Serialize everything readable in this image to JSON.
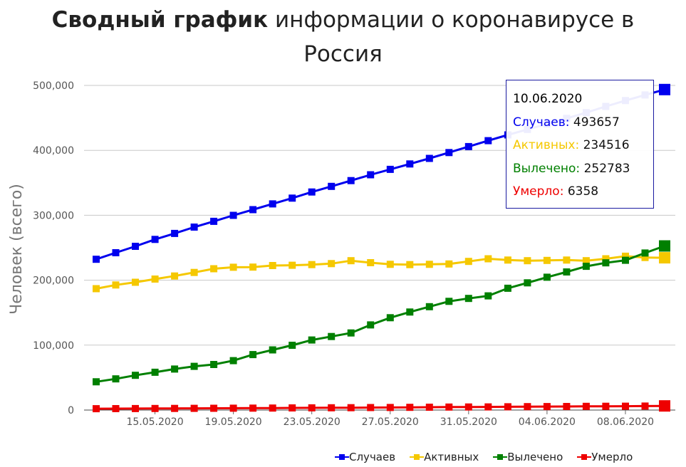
{
  "title": {
    "bold": "Сводный график",
    "rest_line1": "информации о коронавирусе в",
    "line2": "Россия"
  },
  "colors": {
    "cases": "#0000ee",
    "active": "#f5c800",
    "recovered": "#008000",
    "deaths": "#ee0000"
  },
  "tooltip": {
    "date": "10.06.2020",
    "cases_label": "Случаев:",
    "cases_value": "493657",
    "active_label": "Активных:",
    "active_value": "234516",
    "recovered_label": "Вылечено:",
    "recovered_value": "252783",
    "deaths_label": "Умерло:",
    "deaths_value": "6358"
  },
  "chart_data": {
    "type": "line",
    "ylabel": "Человек (всего)",
    "ylim": [
      0,
      500000
    ],
    "yticks": [
      "0",
      "100,000",
      "200,000",
      "300,000",
      "400,000",
      "500,000"
    ],
    "xticks": [
      "15.05.2020",
      "19.05.2020",
      "23.05.2020",
      "27.05.2020",
      "31.05.2020",
      "04.06.2020",
      "08.06.2020"
    ],
    "x_start": "12.05.2020",
    "x_end": "10.06.2020",
    "grid": true,
    "legend_position": "bottom-right",
    "series": [
      {
        "name": "Случаев",
        "key": "cases",
        "values": [
          232243,
          242271,
          252245,
          262843,
          272043,
          281752,
          290678,
          299941,
          308705,
          317554,
          326448,
          335882,
          344481,
          353427,
          362342,
          370680,
          379051,
          387623,
          396575,
          405843,
          414878,
          423741,
          432277,
          440538,
          449256,
          458102,
          467673,
          476658,
          485253,
          493657
        ]
      },
      {
        "name": "Активных",
        "key": "active",
        "values": [
          186985,
          192700,
          196800,
          201800,
          206500,
          211900,
          217600,
          220000,
          220200,
          222600,
          223000,
          224000,
          225500,
          230000,
          227000,
          224500,
          224000,
          224500,
          225000,
          229000,
          233000,
          231000,
          230000,
          230500,
          231000,
          230000,
          233000,
          237000,
          235000,
          234516
        ]
      },
      {
        "name": "Вылечено",
        "key": "recovered",
        "values": [
          43512,
          48003,
          53530,
          58226,
          63166,
          67373,
          70209,
          76130,
          85392,
          92681,
          99825,
          107936,
          113299,
          118798,
          131129,
          142208,
          150993,
          159257,
          167469,
          171883,
          175877,
          187634,
          195957,
          204623,
          212680,
          221388,
          226731,
          230688,
          241917,
          252783
        ]
      },
      {
        "name": "Умерло",
        "key": "deaths",
        "values": [
          2116,
          2212,
          2305,
          2418,
          2537,
          2631,
          2722,
          2837,
          2972,
          3099,
          3249,
          3388,
          3541,
          3633,
          3807,
          3968,
          4142,
          4374,
          4555,
          4693,
          4855,
          5037,
          5215,
          5384,
          5520,
          5725,
          5859,
          5971,
          6142,
          6358
        ]
      }
    ]
  }
}
